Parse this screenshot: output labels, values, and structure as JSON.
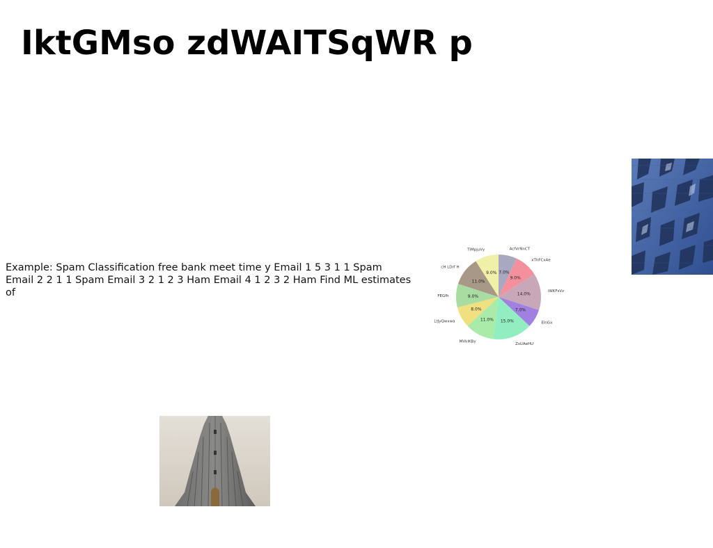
{
  "heading": "IktGMso zdWAITSqWR p",
  "paragraph": "Example: Spam Classification free bank meet time y Email 1 5 3 1 1 Spam Email 2 2 1 1 Spam Email 3 2 1 2 3 Ham Email 4 1 2 3 2 Ham Find ML estimates of",
  "chart_data": {
    "type": "pie",
    "title": "",
    "slices": [
      {
        "label": "AcfVrNnCT",
        "value": 7.0,
        "pct_label": "7.0%",
        "color": "#a8a8c0"
      },
      {
        "label": "xThFCxAe",
        "value": 9.0,
        "pct_label": "9.0%",
        "color": "#f4909c"
      },
      {
        "label": "iWKFsVz",
        "value": 14.0,
        "pct_label": "14.0%",
        "color": "#c8a8b8"
      },
      {
        "label": "ElnGx",
        "value": 7.0,
        "pct_label": "7.0%",
        "color": "#a080e0"
      },
      {
        "label": "ZsUAeHU",
        "value": 15.0,
        "pct_label": "15.0%",
        "color": "#90eec0"
      },
      {
        "label": "MVkIKBy",
        "value": 11.0,
        "pct_label": "11.0%",
        "color": "#a8eca8"
      },
      {
        "label": "LtJyQwxwa",
        "value": 8.0,
        "pct_label": "8.0%",
        "color": "#f0e080"
      },
      {
        "label": "FEGfh",
        "value": 9.0,
        "pct_label": "9.0%",
        "color": "#a8dca0"
      },
      {
        "label": "cH LDrf H",
        "value": 11.0,
        "pct_label": "11.0%",
        "color": "#a89888"
      },
      {
        "label": "TiMpjuVy",
        "value": 9.0,
        "pct_label": "9.0%",
        "color": "#f0f0a8"
      }
    ]
  }
}
